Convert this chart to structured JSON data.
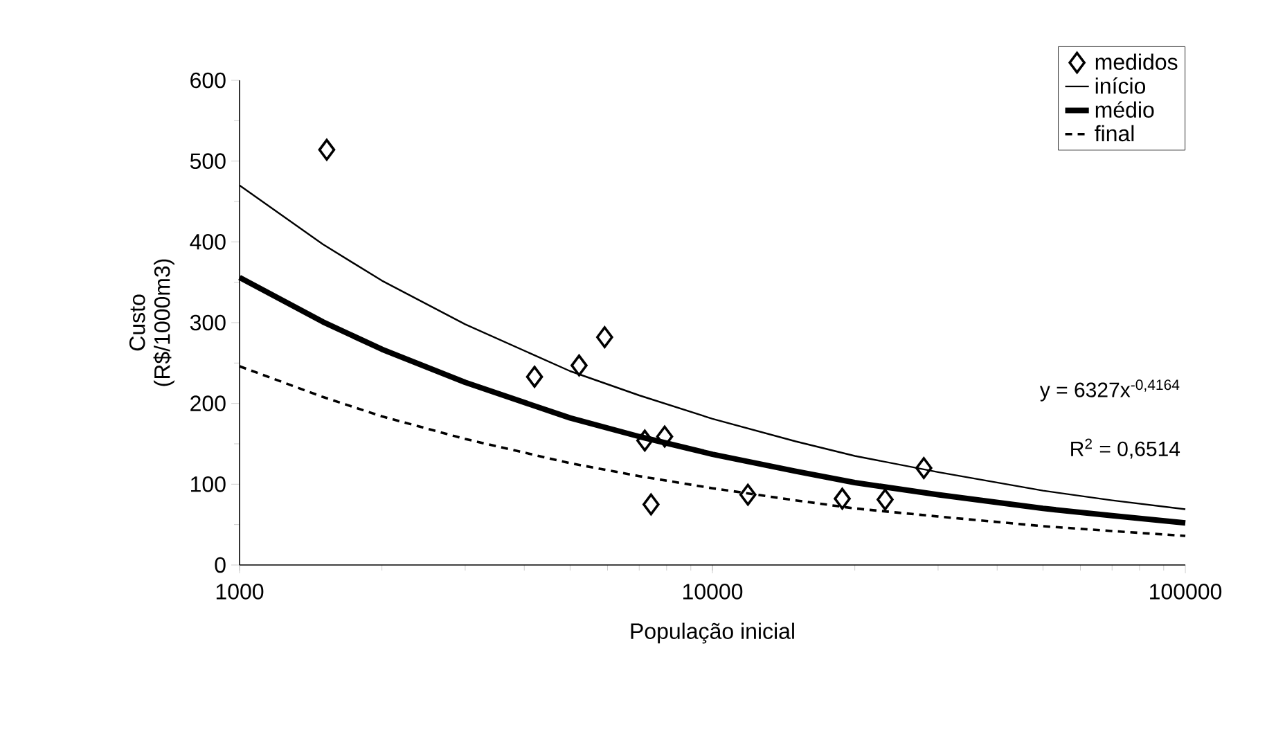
{
  "chart_data": {
    "type": "scatter",
    "xlabel": "População inicial",
    "ylabel": "Custo (R$/1000m3)",
    "log": "x",
    "xlim": [
      1000,
      100000
    ],
    "xticks": [
      1000,
      10000,
      100000
    ],
    "ylim": [
      0,
      600
    ],
    "yticks": [
      0,
      100,
      200,
      300,
      400,
      500,
      600
    ],
    "legend": "top right",
    "grid": false,
    "annotations": [
      "y = 6327x$^{-0,4164}$",
      "R$^{2}$ = 0,6514"
    ],
    "series": [
      {
        "name": "medidos",
        "marker": "diamond",
        "color": "#000000",
        "x": [
          1529,
          4205,
          5224,
          5916,
          7194,
          7925,
          7416,
          11885,
          18820,
          23180,
          27990
        ],
        "values": [
          514,
          233,
          247,
          282,
          154,
          159,
          75,
          87,
          82,
          81,
          120
        ]
      },
      {
        "name": "início",
        "type": "line",
        "line_style": "solid",
        "color": "#000000",
        "x": [
          1000,
          1500,
          2000,
          3000,
          5000,
          7000,
          10000,
          15000,
          20000,
          30000,
          50000,
          70000,
          100000
        ],
        "values": [
          470,
          397,
          352,
          298,
          240,
          210,
          181,
          153,
          135,
          115,
          92,
          80,
          69
        ]
      },
      {
        "name": "médio",
        "type": "line",
        "line_style": "solid",
        "color": "#000000",
        "x": [
          1000,
          1500,
          2000,
          3000,
          5000,
          7000,
          10000,
          15000,
          20000,
          30000,
          50000,
          70000,
          100000
        ],
        "values": [
          356,
          301,
          267,
          226,
          182,
          159,
          137,
          116,
          102,
          87,
          70,
          61,
          52
        ]
      },
      {
        "name": "final",
        "type": "line",
        "line_style": "dashed",
        "color": "#000000",
        "x": [
          1000,
          1500,
          2000,
          3000,
          5000,
          7000,
          10000,
          15000,
          20000,
          30000,
          50000,
          70000,
          100000
        ],
        "values": [
          246,
          208,
          184,
          156,
          126,
          110,
          95,
          80,
          70,
          60,
          48,
          42,
          36
        ]
      }
    ]
  }
}
